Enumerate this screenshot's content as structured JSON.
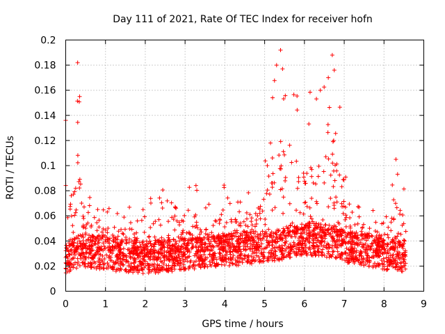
{
  "chart_data": {
    "type": "scatter",
    "title": "Day 111 of 2021, Rate Of TEC Index for receiver hofn",
    "xlabel": "GPS time / hours",
    "ylabel": "ROTI / TECUs",
    "xlim": [
      0,
      9
    ],
    "ylim": [
      0,
      0.2
    ],
    "xticks": [
      "0",
      "1",
      "2",
      "3",
      "4",
      "5",
      "6",
      "7",
      "8",
      "9"
    ],
    "yticks": [
      "0",
      "0.02",
      "0.04",
      "0.06",
      "0.08",
      "0.1",
      "0.12",
      "0.14",
      "0.16",
      "0.18",
      "0.2"
    ],
    "grid": true,
    "marker": "+",
    "color": "#ff0000",
    "x_data_range": [
      0,
      8.55
    ],
    "series_envelope": {
      "hours": [
        0.0,
        0.1,
        0.2,
        0.3,
        0.35,
        0.4,
        0.5,
        1.0,
        1.5,
        2.0,
        2.5,
        3.0,
        3.3,
        3.5,
        4.0,
        4.5,
        4.9,
        5.0,
        5.3,
        5.4,
        5.5,
        5.7,
        6.0,
        6.3,
        6.5,
        6.7,
        6.8,
        7.0,
        7.3,
        7.5,
        8.0,
        8.3,
        8.5
      ],
      "baseline_roti": [
        0.025,
        0.028,
        0.03,
        0.032,
        0.033,
        0.033,
        0.032,
        0.03,
        0.028,
        0.027,
        0.028,
        0.03,
        0.031,
        0.032,
        0.033,
        0.034,
        0.035,
        0.036,
        0.037,
        0.038,
        0.038,
        0.04,
        0.042,
        0.041,
        0.04,
        0.04,
        0.039,
        0.036,
        0.034,
        0.033,
        0.03,
        0.029,
        0.028
      ],
      "max_roti": [
        0.136,
        0.1,
        0.132,
        0.182,
        0.155,
        0.12,
        0.08,
        0.07,
        0.072,
        0.07,
        0.09,
        0.085,
        0.088,
        0.07,
        0.095,
        0.075,
        0.1,
        0.155,
        0.18,
        0.192,
        0.178,
        0.158,
        0.16,
        0.16,
        0.17,
        0.188,
        0.176,
        0.12,
        0.08,
        0.07,
        0.06,
        0.105,
        0.085
      ]
    },
    "peaks": [
      {
        "x": 0.0,
        "y": 0.136
      },
      {
        "x": 0.3,
        "y": 0.182
      },
      {
        "x": 0.35,
        "y": 0.155
      },
      {
        "x": 5.2,
        "y": 0.154
      },
      {
        "x": 5.3,
        "y": 0.18
      },
      {
        "x": 5.4,
        "y": 0.192
      },
      {
        "x": 5.45,
        "y": 0.177
      },
      {
        "x": 6.4,
        "y": 0.16
      },
      {
        "x": 6.6,
        "y": 0.17
      },
      {
        "x": 6.7,
        "y": 0.188
      },
      {
        "x": 6.75,
        "y": 0.176
      },
      {
        "x": 8.3,
        "y": 0.105
      }
    ],
    "point_count": 2600
  }
}
